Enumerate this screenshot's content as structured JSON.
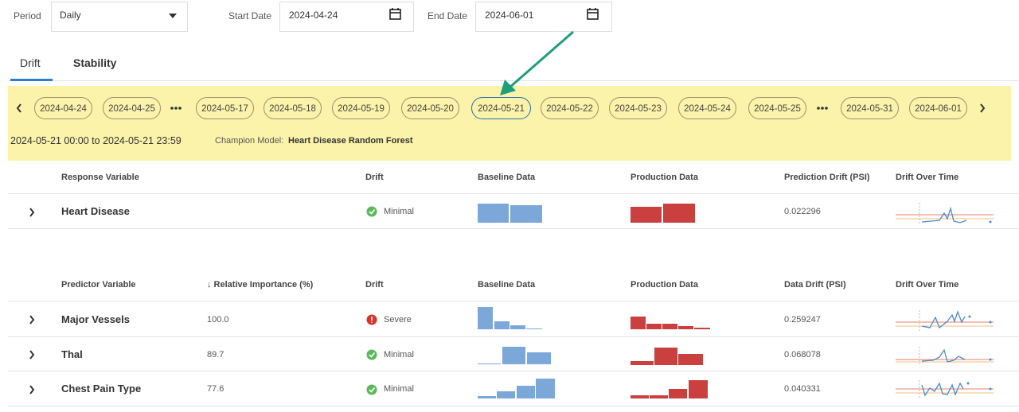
{
  "filters": {
    "period_label": "Period",
    "period_value": "Daily",
    "start_label": "Start Date",
    "start_value": "2024-04-24",
    "end_label": "End Date",
    "end_value": "2024-06-01"
  },
  "tabs": [
    "Drift",
    "Stability"
  ],
  "date_nav": [
    "2024-04-24",
    "2024-04-25",
    "2024-05-17",
    "2024-05-18",
    "2024-05-19",
    "2024-05-20",
    "2024-05-21",
    "2024-05-22",
    "2024-05-23",
    "2024-05-24",
    "2024-05-25",
    "2024-05-31",
    "2024-06-01"
  ],
  "selection": {
    "range": "2024-05-21 00:00 to 2024-05-21 23:59",
    "champion_label": "Champion Model:",
    "champion_name": "Heart Disease Random Forest"
  },
  "response_table": {
    "headers": [
      "Response Variable",
      "Drift",
      "Baseline Data",
      "Production Data",
      "Prediction Drift (PSI)",
      "Drift Over Time"
    ],
    "rows": [
      {
        "name": "Heart Disease",
        "drift": "Minimal",
        "psi": "0.022296"
      }
    ]
  },
  "predictor_table": {
    "headers": [
      "Predictor Variable",
      "↓ Relative Importance (%)",
      "Drift",
      "Baseline Data",
      "Production Data",
      "Data Drift (PSI)",
      "Drift Over Time"
    ],
    "rows": [
      {
        "name": "Major Vessels",
        "importance": "100.0",
        "drift": "Severe",
        "psi": "0.259247"
      },
      {
        "name": "Thal",
        "importance": "89.7",
        "drift": "Minimal",
        "psi": "0.068078"
      },
      {
        "name": "Chest Pain Type",
        "importance": "77.6",
        "drift": "Minimal",
        "psi": "0.040331"
      }
    ]
  }
}
